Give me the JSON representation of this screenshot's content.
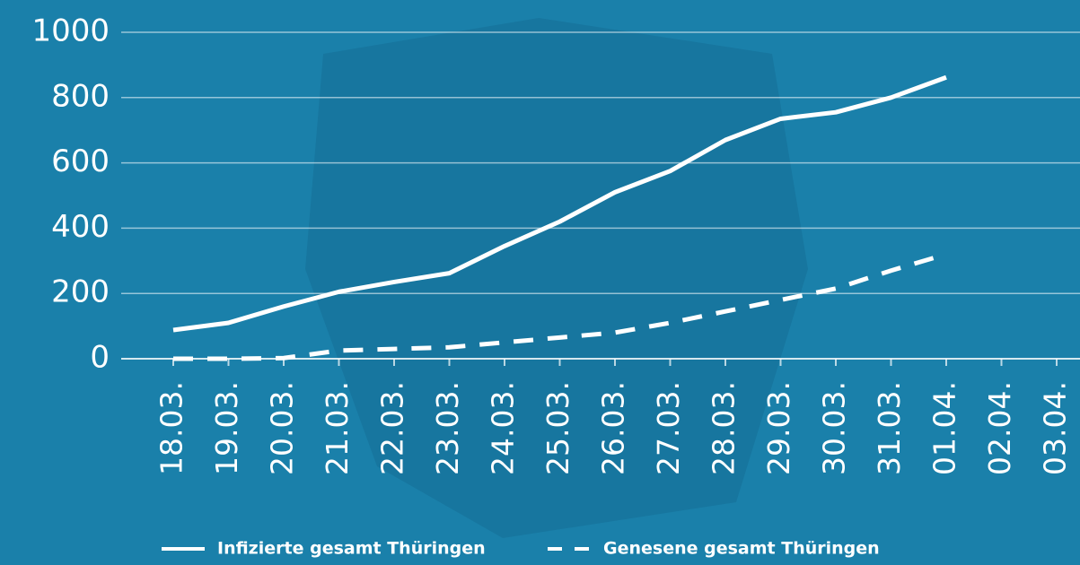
{
  "chart_data": {
    "type": "line",
    "categories": [
      "18.03.",
      "19.03.",
      "20.03.",
      "21.03.",
      "22.03.",
      "23.03.",
      "24.03.",
      "25.03.",
      "26.03.",
      "27.03.",
      "28.03.",
      "29.03.",
      "30.03.",
      "31.03.",
      "01.04.",
      "02.04.",
      "03.04."
    ],
    "series": [
      {
        "name": "Infizierte gesamt Thüringen",
        "color": "#ffffff",
        "line_style": "solid",
        "values": [
          88,
          110,
          160,
          205,
          235,
          262,
          345,
          420,
          510,
          575,
          670,
          735,
          755,
          800,
          862,
          null,
          null
        ]
      },
      {
        "name": "Genesene gesamt Thüringen",
        "color": "#ffffff",
        "line_style": "dashed",
        "values": [
          0,
          0,
          2,
          25,
          30,
          35,
          50,
          65,
          80,
          110,
          145,
          180,
          215,
          270,
          320,
          null,
          null
        ]
      }
    ],
    "ylim": [
      0,
      1000
    ],
    "yticks": [
      0,
      200,
      400,
      600,
      800,
      1000
    ],
    "grid": true,
    "legend": "bottom"
  }
}
